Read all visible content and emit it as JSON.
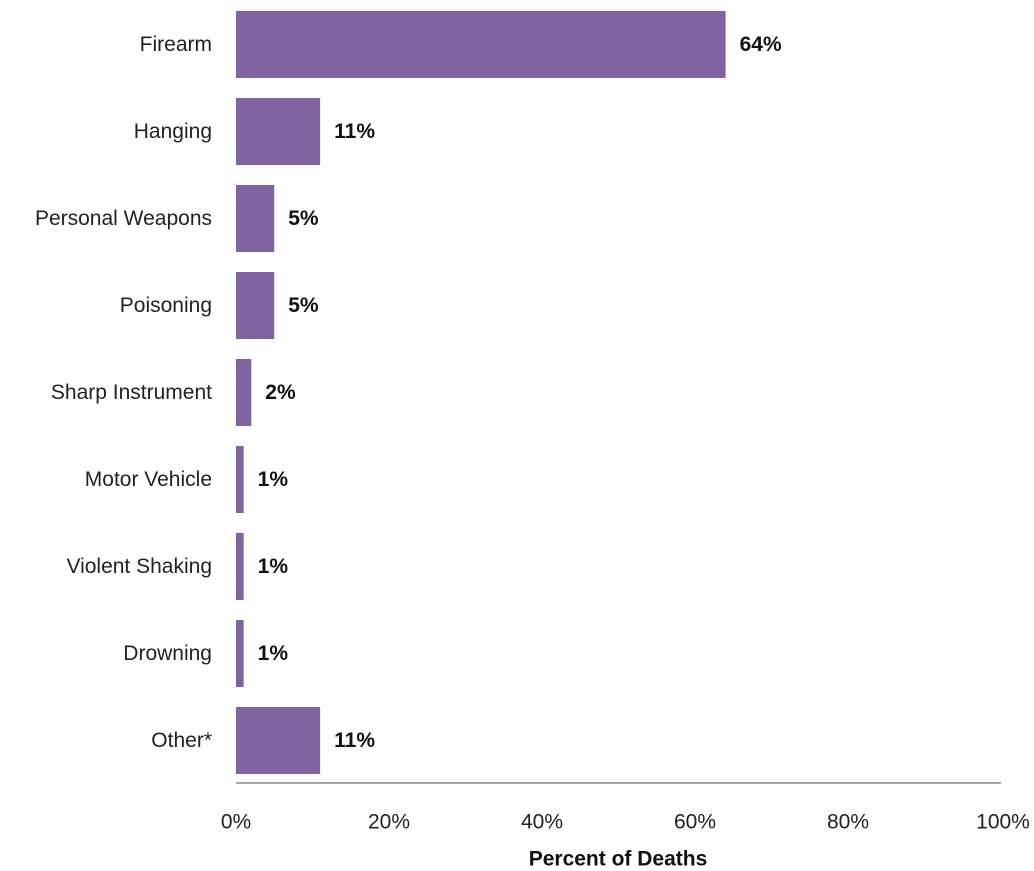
{
  "chart_data": {
    "type": "bar",
    "orientation": "horizontal",
    "categories": [
      "Firearm",
      "Hanging",
      "Personal Weapons",
      "Poisoning",
      "Sharp Instrument",
      "Motor Vehicle",
      "Violent Shaking",
      "Drowning",
      "Other*"
    ],
    "values": [
      64,
      11,
      5,
      5,
      2,
      1,
      1,
      1,
      11
    ],
    "value_labels": [
      "64%",
      "11%",
      "5%",
      "5%",
      "2%",
      "1%",
      "1%",
      "1%",
      "11%"
    ],
    "xlabel": "Percent of Deaths",
    "ylabel": "",
    "title": "",
    "xlim": [
      0,
      100
    ],
    "x_ticks": [
      0,
      20,
      40,
      60,
      80,
      100
    ],
    "x_tick_labels": [
      "0%",
      "20%",
      "40%",
      "60%",
      "80%",
      "100%"
    ],
    "grid": false,
    "bar_color": "#8064a2",
    "axis_color": "#a6a6a6"
  }
}
